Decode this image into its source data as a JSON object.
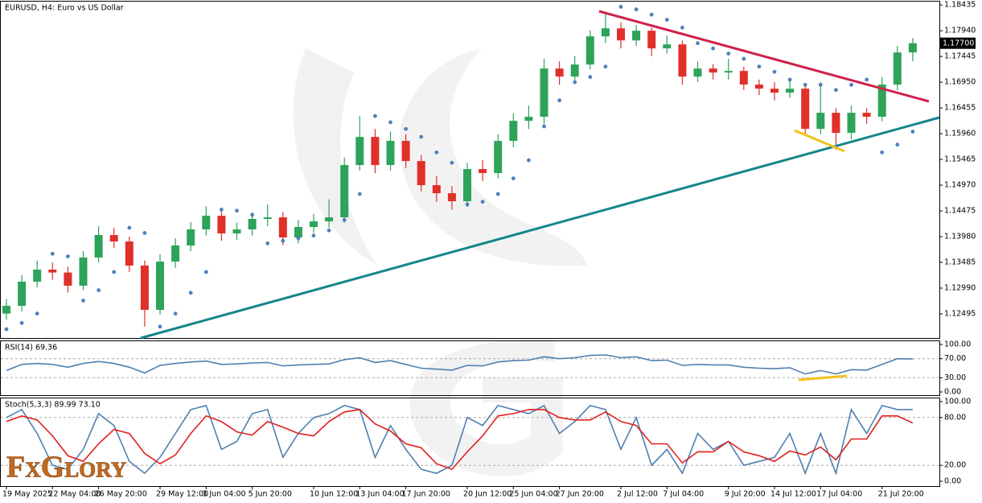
{
  "brand": "FxGlory",
  "chart_data": [
    {
      "type": "candlestick",
      "title": "EURUSD, H4:  Euro vs US Dollar",
      "up_color": "#2ea35a",
      "down_color": "#e0302a",
      "sar_color": "#4f81bd",
      "grid": false,
      "ylim": [
        1.1203,
        1.185
      ],
      "yticks": [
        1.18435,
        {
          "value": 1.1794,
          "label": "1.17940"
        },
        1.17445,
        {
          "value": 1.1695,
          "label": "1.16950"
        },
        1.16455,
        {
          "value": 1.1596,
          "label": "1.15960"
        },
        1.15465,
        {
          "value": 1.1497,
          "label": "1.14970"
        },
        1.14475,
        {
          "value": 1.1398,
          "label": "1.13980"
        },
        1.13485,
        {
          "value": 1.1299,
          "label": "1.12990"
        },
        1.12495
      ],
      "last_price": {
        "value": 1.177,
        "label": "1.17700"
      },
      "xticks": [
        {
          "value": 0,
          "label": "19 May 2025"
        },
        {
          "value": 3,
          "label": "22 May 04:00"
        },
        {
          "value": 6,
          "label": "26 May 20:00"
        },
        {
          "value": 10,
          "label": "29 May 12:00"
        },
        {
          "value": 13,
          "label": "3 Jun 04:00"
        },
        {
          "value": 16,
          "label": "5 Jun 20:00"
        },
        {
          "value": 20,
          "label": "10 Jun 12:00"
        },
        {
          "value": 23,
          "label": "13 Jun 04:00"
        },
        {
          "value": 26,
          "label": "17 Jun 20:00"
        },
        {
          "value": 30,
          "label": "20 Jun 12:00"
        },
        {
          "value": 33,
          "label": "25 Jun 04:00"
        },
        {
          "value": 36,
          "label": "27 Jun 20:00"
        },
        {
          "value": 40,
          "label": "2 Jul 12:00"
        },
        {
          "value": 43,
          "label": "7 Jul 04:00"
        },
        {
          "value": 47,
          "label": "9 Jul 20:00"
        },
        {
          "value": 50,
          "label": "14 Jul 12:00"
        },
        {
          "value": 53,
          "label": "17 Jul 04:00"
        },
        {
          "value": 57,
          "label": "21 Jul 20:00"
        }
      ],
      "open": [
        1.125,
        1.1265,
        1.13114,
        1.13346,
        1.1329,
        1.13036,
        1.13578,
        1.14011,
        1.13887,
        1.13423,
        1.12572,
        1.135,
        1.1381,
        1.14119,
        1.14382,
        1.14042,
        1.14119,
        1.1432,
        1.14351,
        1.13964,
        1.14166,
        1.14274,
        1.14351,
        1.15357,
        1.15898,
        1.15357,
        1.15821,
        1.15434,
        1.1497,
        1.14815,
        1.14661,
        1.15279,
        1.15202,
        1.15821,
        1.16207,
        1.16285,
        1.17213,
        1.17058,
        1.1729,
        1.17832,
        1.17986,
        1.17754,
        1.1794,
        1.176,
        1.17677,
        1.17058,
        1.17213,
        1.17136,
        1.17167,
        1.16904,
        1.16826,
        1.16749,
        1.16826,
        1.16053,
        1.16362,
        1.15975,
        1.16362,
        1.16285,
        1.16904,
        1.17522
      ],
      "high": [
        1.1278,
        1.1324,
        1.1352,
        1.1348,
        1.134,
        1.137,
        1.1418,
        1.1415,
        1.1398,
        1.1352,
        1.1364,
        1.1395,
        1.1426,
        1.1456,
        1.1448,
        1.1425,
        1.1445,
        1.146,
        1.1445,
        1.143,
        1.1442,
        1.147,
        1.155,
        1.163,
        1.1605,
        1.16,
        1.1595,
        1.1555,
        1.1515,
        1.1495,
        1.154,
        1.1545,
        1.1595,
        1.1635,
        1.165,
        1.174,
        1.1735,
        1.1745,
        1.1795,
        1.183,
        1.181,
        1.1805,
        1.18,
        1.1785,
        1.1775,
        1.1735,
        1.173,
        1.174,
        1.1725,
        1.17,
        1.1695,
        1.17,
        1.169,
        1.1695,
        1.1645,
        1.165,
        1.1645,
        1.1705,
        1.1765,
        1.178
      ],
      "low": [
        1.1238,
        1.1254,
        1.13,
        1.1315,
        1.129,
        1.1295,
        1.1348,
        1.1376,
        1.133,
        1.1225,
        1.1248,
        1.1338,
        1.137,
        1.14,
        1.139,
        1.1392,
        1.14,
        1.1418,
        1.1382,
        1.1385,
        1.1405,
        1.1415,
        1.1425,
        1.1525,
        1.152,
        1.1525,
        1.153,
        1.1485,
        1.1465,
        1.145,
        1.1455,
        1.1505,
        1.151,
        1.157,
        1.1605,
        1.1615,
        1.169,
        1.1695,
        1.172,
        1.177,
        1.176,
        1.1765,
        1.1745,
        1.175,
        1.169,
        1.1695,
        1.17,
        1.17,
        1.168,
        1.167,
        1.166,
        1.1665,
        1.1595,
        1.1595,
        1.1565,
        1.1585,
        1.1615,
        1.162,
        1.168,
        1.1735
      ],
      "close": [
        1.1265,
        1.13114,
        1.13346,
        1.1329,
        1.13036,
        1.13578,
        1.14011,
        1.13887,
        1.13423,
        1.12572,
        1.135,
        1.1381,
        1.14119,
        1.14382,
        1.14042,
        1.14119,
        1.1432,
        1.14351,
        1.13964,
        1.14166,
        1.14274,
        1.14351,
        1.15357,
        1.15898,
        1.15357,
        1.15821,
        1.15434,
        1.1497,
        1.14815,
        1.14661,
        1.15279,
        1.15202,
        1.15821,
        1.16207,
        1.16285,
        1.17213,
        1.17058,
        1.1729,
        1.17832,
        1.17986,
        1.17754,
        1.1794,
        1.176,
        1.17677,
        1.17058,
        1.17213,
        1.17136,
        1.17167,
        1.16904,
        1.16826,
        1.16749,
        1.16826,
        1.16053,
        1.16362,
        1.15975,
        1.16362,
        1.16285,
        1.16904,
        1.17522,
        1.177
      ],
      "sar": [
        1.122,
        1.1232,
        1.125,
        1.1365,
        1.136,
        1.1275,
        1.1295,
        1.133,
        1.1415,
        1.1405,
        1.1225,
        1.125,
        1.129,
        1.133,
        1.145,
        1.1448,
        1.144,
        1.1385,
        1.139,
        1.1395,
        1.14,
        1.141,
        1.143,
        1.148,
        1.163,
        1.1618,
        1.1605,
        1.159,
        1.156,
        1.154,
        1.146,
        1.1465,
        1.148,
        1.151,
        1.1545,
        1.161,
        1.166,
        1.1695,
        1.1705,
        1.1725,
        1.184,
        1.1835,
        1.1825,
        1.1815,
        1.18,
        1.177,
        1.176,
        1.175,
        1.174,
        1.1725,
        1.1715,
        1.17,
        1.169,
        1.169,
        1.168,
        1.169,
        1.17,
        1.156,
        1.1575,
        1.16
      ]
    },
    {
      "type": "line",
      "title": "RSI(14) 69.36",
      "ylim": [
        0,
        100
      ],
      "yticks": [
        {
          "value": 100,
          "label": "100.00"
        },
        {
          "value": 70,
          "label": "70.00"
        },
        {
          "value": 30,
          "label": "30.00"
        },
        {
          "value": 0,
          "label": "0.00"
        }
      ],
      "series": [
        {
          "color": "#4f7fb0",
          "values": [
            45,
            58,
            60,
            58,
            52,
            60,
            64,
            60,
            52,
            40,
            56,
            60,
            63,
            65,
            58,
            59,
            61,
            62,
            55,
            57,
            58,
            59,
            68,
            72,
            62,
            66,
            58,
            50,
            48,
            46,
            56,
            55,
            63,
            66,
            67,
            74,
            70,
            72,
            77,
            78,
            72,
            74,
            66,
            67,
            56,
            58,
            57,
            57,
            52,
            50,
            49,
            51,
            38,
            45,
            38,
            47,
            46,
            58,
            70,
            69.36
          ]
        }
      ]
    },
    {
      "type": "line",
      "title": "Stoch(5,3,3) 89.99 73.10",
      "ylim": [
        0,
        100
      ],
      "yticks": [
        {
          "value": 100,
          "label": "100.00"
        },
        {
          "value": 80,
          "label": "80.00"
        },
        {
          "value": 20,
          "label": "20.00"
        },
        {
          "value": 0,
          "label": "0.00"
        }
      ],
      "series": [
        {
          "color": "#4f7fb0",
          "values": [
            80,
            90,
            60,
            20,
            15,
            40,
            85,
            70,
            25,
            10,
            30,
            60,
            90,
            95,
            40,
            50,
            85,
            90,
            30,
            60,
            80,
            85,
            95,
            90,
            30,
            70,
            40,
            15,
            10,
            20,
            80,
            70,
            95,
            90,
            85,
            95,
            60,
            75,
            95,
            90,
            40,
            80,
            20,
            40,
            10,
            60,
            40,
            50,
            20,
            25,
            30,
            60,
            10,
            60,
            10,
            90,
            60,
            95,
            90,
            89.99
          ]
        },
        {
          "color": "#e0201c",
          "values": [
            75,
            82,
            77,
            57,
            32,
            25,
            47,
            65,
            60,
            35,
            22,
            33,
            60,
            82,
            75,
            62,
            58,
            75,
            68,
            60,
            57,
            75,
            87,
            90,
            72,
            63,
            47,
            42,
            22,
            15,
            37,
            57,
            82,
            85,
            90,
            90,
            80,
            77,
            77,
            87,
            75,
            70,
            47,
            47,
            23,
            37,
            37,
            50,
            37,
            32,
            25,
            38,
            33,
            43,
            27,
            53,
            53,
            82,
            82,
            73.1
          ]
        }
      ]
    }
  ]
}
